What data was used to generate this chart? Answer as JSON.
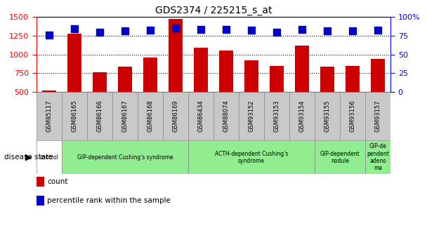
{
  "title": "GDS2374 / 225215_s_at",
  "samples": [
    "GSM85117",
    "GSM86165",
    "GSM86166",
    "GSM86167",
    "GSM86168",
    "GSM86169",
    "GSM86434",
    "GSM88074",
    "GSM93152",
    "GSM93153",
    "GSM93154",
    "GSM93155",
    "GSM93156",
    "GSM93157"
  ],
  "counts": [
    520,
    1280,
    760,
    840,
    960,
    1470,
    1090,
    1055,
    920,
    845,
    1120,
    840,
    845,
    940
  ],
  "percentiles": [
    76,
    84,
    80,
    81,
    82,
    85,
    83,
    83,
    82,
    80,
    83,
    81,
    81,
    82
  ],
  "group_boundaries": [
    {
      "start": 0,
      "end": 1,
      "label": "control",
      "color": "#ffffff"
    },
    {
      "start": 1,
      "end": 6,
      "label": "GIP-dependent Cushing's syndrome",
      "color": "#90EE90"
    },
    {
      "start": 6,
      "end": 11,
      "label": "ACTH-dependent Cushing's\nsyndrome",
      "color": "#90EE90"
    },
    {
      "start": 11,
      "end": 13,
      "label": "GIP-dependent\nnodule",
      "color": "#90EE90"
    },
    {
      "start": 13,
      "end": 14,
      "label": "GIP-de\npendent\nadeno\nma",
      "color": "#90EE90"
    }
  ],
  "ylim_left": [
    500,
    1500
  ],
  "ylim_right": [
    0,
    100
  ],
  "yticks_left": [
    500,
    750,
    1000,
    1250,
    1500
  ],
  "yticks_right": [
    0,
    25,
    50,
    75,
    100
  ],
  "bar_color": "#CC0000",
  "dot_color": "#0000CC",
  "bar_width": 0.55,
  "dot_size": 45,
  "sample_box_color": "#C8C8C8",
  "fig_bg": "#ffffff",
  "legend_items": [
    {
      "color": "#CC0000",
      "label": "count"
    },
    {
      "color": "#0000CC",
      "label": "percentile rank within the sample"
    }
  ]
}
